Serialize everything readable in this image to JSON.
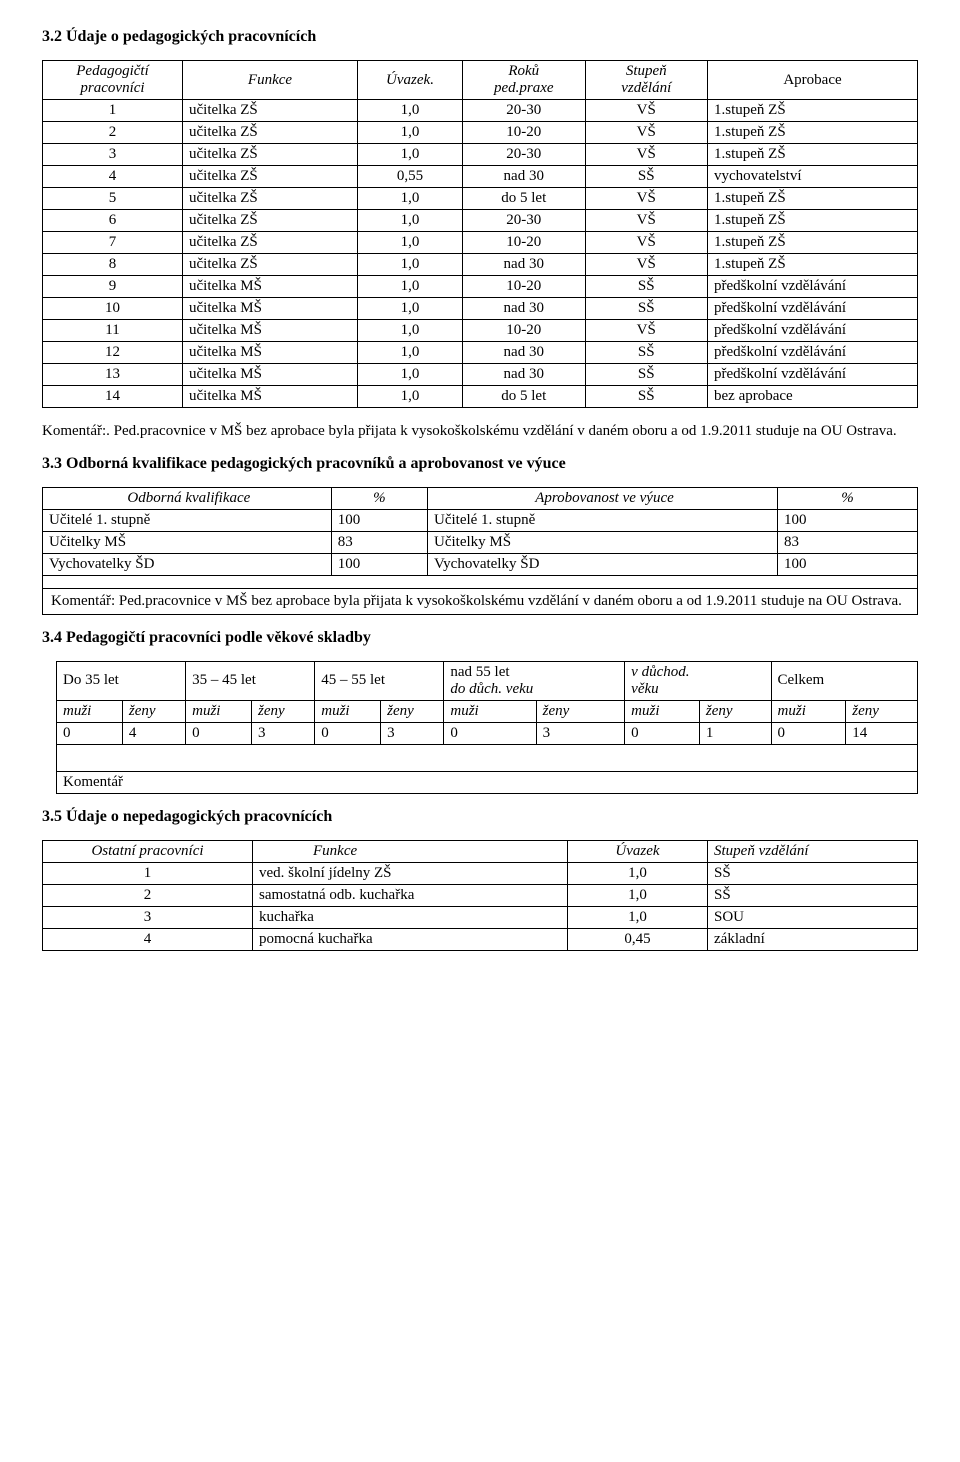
{
  "sec32": {
    "title": "3.2 Údaje o pedagogických pracovnících",
    "headers": {
      "c1a": "Pedagogičtí",
      "c1b": "pracovníci",
      "c2": "Funkce",
      "c3": "Úvazek.",
      "c4a": "Roků",
      "c4b": "ped.praxe",
      "c5a": "Stupeň",
      "c5b": "vzdělání",
      "c6": "Aprobace"
    },
    "rows": [
      {
        "n": "1",
        "f": "učitelka ZŠ",
        "u": "1,0",
        "r": "20-30",
        "s": "VŠ",
        "a": "1.stupeň ZŠ",
        "sm": false
      },
      {
        "n": "2",
        "f": "učitelka ZŠ",
        "u": "1,0",
        "r": "10-20",
        "s": "VŠ",
        "a": "1.stupeň ZŠ",
        "sm": false
      },
      {
        "n": "3",
        "f": "učitelka ZŠ",
        "u": "1,0",
        "r": "20-30",
        "s": "VŠ",
        "a": "1.stupeň ZŠ",
        "sm": false
      },
      {
        "n": "4",
        "f": "učitelka ZŠ",
        "u": "0,55",
        "r": "nad 30",
        "s": "SŠ",
        "a": "vychovatelství",
        "sm": false
      },
      {
        "n": "5",
        "f": "učitelka ZŠ",
        "u": "1,0",
        "r": "do 5 let",
        "s": "VŠ",
        "a": "1.stupeň ZŠ",
        "sm": false
      },
      {
        "n": "6",
        "f": "učitelka ZŠ",
        "u": "1,0",
        "r": "20-30",
        "s": "VŠ",
        "a": "1.stupeň ZŠ",
        "sm": false
      },
      {
        "n": "7",
        "f": "učitelka ZŠ",
        "u": "1,0",
        "r": "10-20",
        "s": "VŠ",
        "a": "1.stupeň ZŠ",
        "sm": false
      },
      {
        "n": "8",
        "f": "učitelka ZŠ",
        "u": "1,0",
        "r": "nad 30",
        "s": "VŠ",
        "a": "1.stupeň ZŠ",
        "sm": false
      },
      {
        "n": "9",
        "f": "učitelka MŠ",
        "u": "1,0",
        "r": "10-20",
        "s": "SŠ",
        "a": "předškolní vzdělávání",
        "sm": true
      },
      {
        "n": "10",
        "f": "učitelka MŠ",
        "u": "1,0",
        "r": "nad 30",
        "s": "SŠ",
        "a": "předškolní vzdělávání",
        "sm": true
      },
      {
        "n": "11",
        "f": "učitelka MŠ",
        "u": "1,0",
        "r": "10-20",
        "s": "VŠ",
        "a": "předškolní vzdělávání",
        "sm": true
      },
      {
        "n": "12",
        "f": "učitelka MŠ",
        "u": "1,0",
        "r": "nad 30",
        "s": "SŠ",
        "a": "předškolní vzdělávání",
        "sm": true
      },
      {
        "n": "13",
        "f": "učitelka MŠ",
        "u": "1,0",
        "r": "nad 30",
        "s": "SŠ",
        "a": "předškolní vzdělávání",
        "sm": true
      },
      {
        "n": "14",
        "f": "učitelka MŠ",
        "u": "1,0",
        "r": "do 5 let",
        "s": "SŠ",
        "a": "bez aprobace",
        "sm": false
      }
    ],
    "comment": "Komentář:. Ped.pracovnice v MŠ bez aprobace byla přijata k vysokoškolskému vzdělání v daném oboru a od 1.9.2011 studuje na OU Ostrava."
  },
  "sec33": {
    "title": "3.3 Odborná kvalifikace pedagogických pracovníků a aprobovanost ve výuce",
    "hdr": {
      "c1": "Odborná kvalifikace",
      "c2": "%",
      "c3": "Aprobovanost ve výuce",
      "c4": "%"
    },
    "rows": [
      {
        "a": "Učitelé 1. stupně",
        "b": "100",
        "c": "Učitelé 1. stupně",
        "d": "100"
      },
      {
        "a": "Učitelky MŠ",
        "b": "83",
        "c": "Učitelky MŠ",
        "d": "83"
      },
      {
        "a": "Vychovatelky ŠD",
        "b": "100",
        "c": "Vychovatelky ŠD",
        "d": "100"
      }
    ],
    "comment": "Komentář: Ped.pracovnice v MŠ bez aprobace byla přijata k vysokoškolskému vzdělání v daném oboru a od 1.9.2011 studuje na OU Ostrava."
  },
  "sec34": {
    "title": "3.4 Pedagogičtí pracovníci podle věkové skladby",
    "hdr1": {
      "c1": "Do 35 let",
      "c2": "35 – 45 let",
      "c3": "45 – 55 let",
      "c4a": "nad 55 let",
      "c4b": "do důch. veku",
      "c5a": "v důchod.",
      "c5b": "věku",
      "c6": "Celkem"
    },
    "hdr2": {
      "m": "muži",
      "z": "ženy"
    },
    "row": [
      "0",
      "4",
      "0",
      "3",
      "0",
      "3",
      "0",
      "3",
      "0",
      "1",
      "0",
      "14"
    ],
    "comment": "Komentář"
  },
  "sec35": {
    "title": "3.5 Údaje o nepedagogických pracovnících",
    "hdr": {
      "c1": "Ostatní pracovníci",
      "c2": "Funkce",
      "c3": "Úvazek",
      "c4": "Stupeň vzdělání"
    },
    "rows": [
      {
        "n": "1",
        "f": "ved. školní jídelny ZŠ",
        "u": "1,0",
        "s": "SŠ"
      },
      {
        "n": "2",
        "f": "samostatná odb. kuchařka",
        "u": "1,0",
        "s": "SŠ"
      },
      {
        "n": "3",
        "f": "kuchařka",
        "u": "1,0",
        "s": "SOU"
      },
      {
        "n": "4",
        "f": "pomocná kuchařka",
        "u": "0,45",
        "s": "základní"
      }
    ]
  },
  "colwidths": {
    "t32": [
      "16%",
      "20%",
      "12%",
      "14%",
      "14%",
      "24%"
    ],
    "t33": [
      "33%",
      "11%",
      "40%",
      "16%"
    ],
    "t34_top": [
      "15%",
      "15%",
      "15%",
      "21%",
      "17%",
      "17%"
    ],
    "t35": [
      "24%",
      "36%",
      "16%",
      "24%"
    ]
  }
}
